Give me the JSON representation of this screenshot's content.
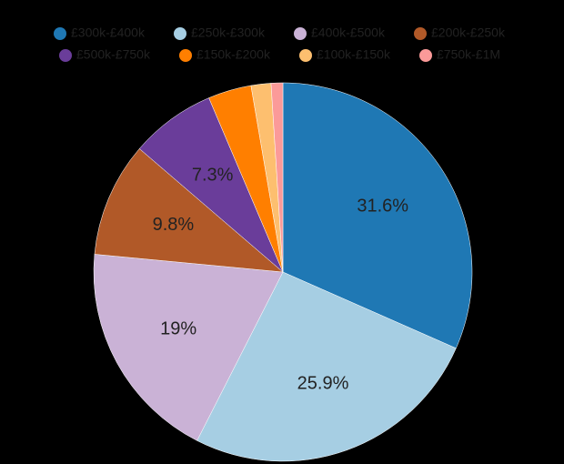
{
  "chart_data": {
    "type": "pie",
    "categories": [
      "£300k-£400k",
      "£250k-£300k",
      "£400k-£500k",
      "£200k-£250k",
      "£500k-£750k",
      "£150k-£200k",
      "£100k-£150k",
      "£750k-£1M"
    ],
    "values": [
      31.6,
      25.9,
      19,
      9.8,
      7.3,
      3.7,
      1.7,
      1.0
    ],
    "value_labels": [
      "31.6%",
      "25.9%",
      "19%",
      "9.8%",
      "7.3%",
      null,
      null,
      null
    ],
    "colors": [
      "#1f78b4",
      "#a6cee3",
      "#cab2d6",
      "#b15928",
      "#6a3d9a",
      "#ff7f00",
      "#fdbf6f",
      "#fb9a99"
    ],
    "legend": "top"
  }
}
